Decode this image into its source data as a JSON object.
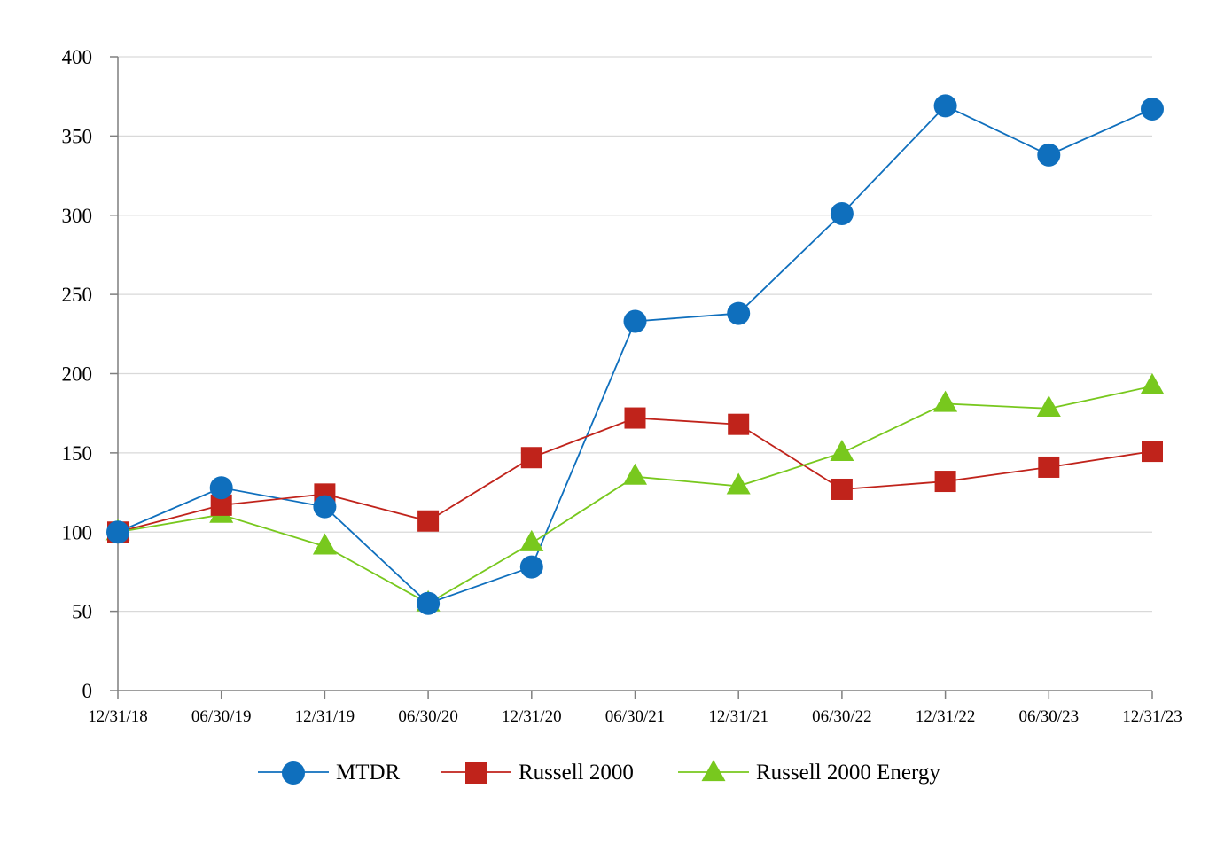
{
  "chart_data": {
    "type": "line",
    "title": "",
    "xlabel": "",
    "ylabel": "",
    "ylim": [
      0,
      400
    ],
    "yticks": [
      0,
      50,
      100,
      150,
      200,
      250,
      300,
      350,
      400
    ],
    "grid": true,
    "legend_position": "bottom",
    "categories": [
      "12/31/18",
      "06/30/19",
      "12/31/19",
      "06/30/20",
      "12/31/20",
      "06/30/21",
      "12/31/21",
      "06/30/22",
      "12/31/22",
      "06/30/23",
      "12/31/23"
    ],
    "series": [
      {
        "name": "MTDR",
        "color": "#0f6fbd",
        "marker": "circle",
        "values": [
          100,
          128,
          116,
          55,
          78,
          233,
          238,
          301,
          369,
          338,
          367
        ]
      },
      {
        "name": "Russell 2000",
        "color": "#c0231b",
        "marker": "square",
        "values": [
          100,
          117,
          124,
          107,
          147,
          172,
          168,
          127,
          132,
          141,
          151
        ]
      },
      {
        "name": "Russell 2000 Energy",
        "color": "#78c81e",
        "marker": "triangle",
        "values": [
          100,
          111,
          91,
          55,
          93,
          135,
          129,
          150,
          181,
          178,
          192
        ]
      }
    ]
  }
}
